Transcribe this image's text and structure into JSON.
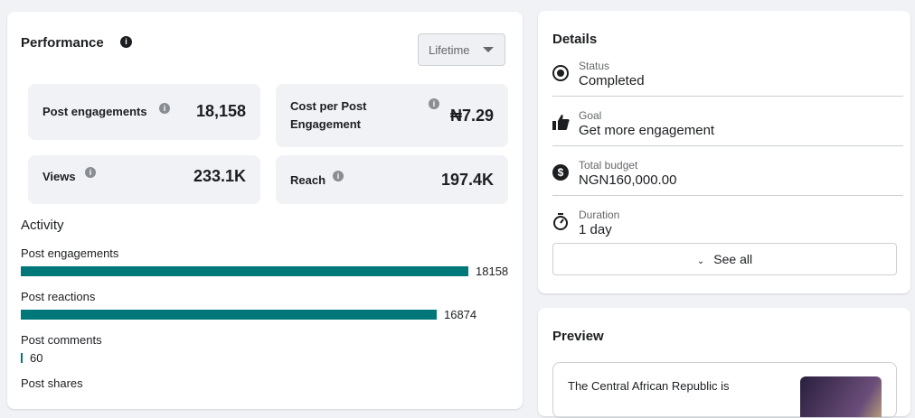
{
  "performance": {
    "title": "Performance",
    "filter": "Lifetime",
    "metrics": [
      {
        "label": "Post engagements",
        "value": "18,158"
      },
      {
        "label": "Cost per Post Engagement",
        "value": "₦7.29"
      },
      {
        "label": "Views",
        "value": "233.1K"
      },
      {
        "label": "Reach",
        "value": "197.4K"
      }
    ]
  },
  "activity": {
    "title": "Activity",
    "items": [
      {
        "label": "Post engagements",
        "value": 18158
      },
      {
        "label": "Post reactions",
        "value": 16874
      },
      {
        "label": "Post comments",
        "value": 60
      },
      {
        "label": "Post shares"
      }
    ]
  },
  "details": {
    "title": "Details",
    "items": [
      {
        "label": "Status",
        "value": "Completed"
      },
      {
        "label": "Goal",
        "value": "Get more engagement"
      },
      {
        "label": "Total budget",
        "value": "NGN160,000.00"
      },
      {
        "label": "Duration",
        "value": "1 day"
      }
    ],
    "see_all": "See all"
  },
  "preview": {
    "title": "Preview",
    "text": "The Central African Republic is"
  }
}
